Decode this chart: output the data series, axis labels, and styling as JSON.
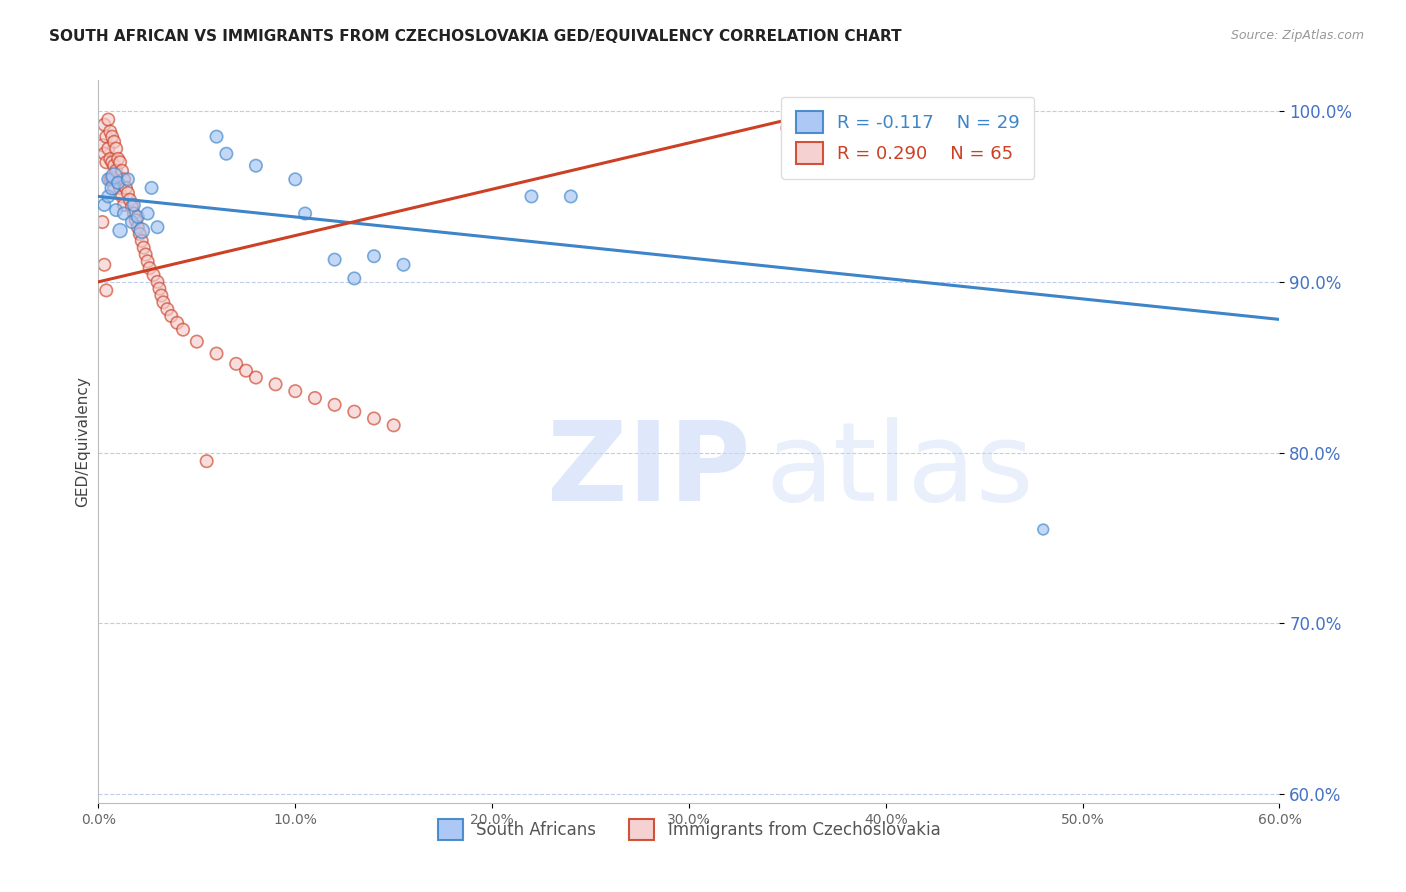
{
  "title": "SOUTH AFRICAN VS IMMIGRANTS FROM CZECHOSLOVAKIA GED/EQUIVALENCY CORRELATION CHART",
  "source": "Source: ZipAtlas.com",
  "ylabel": "GED/Equivalency",
  "xmin": 0.0,
  "xmax": 0.6,
  "ymin": 0.595,
  "ymax": 1.018,
  "yticks": [
    0.6,
    0.7,
    0.8,
    0.9,
    1.0
  ],
  "xticks": [
    0.0,
    0.1,
    0.2,
    0.3,
    0.4,
    0.5,
    0.6
  ],
  "legend_r_blue": "R = -0.117",
  "legend_n_blue": "N = 29",
  "legend_r_pink": "R = 0.290",
  "legend_n_pink": "N = 65",
  "blue_fill": "#a4c2f4",
  "blue_edge": "#3d85c8",
  "pink_fill": "#f4cccc",
  "pink_edge": "#cc4125",
  "blue_line_color": "#3d85c8",
  "pink_line_color": "#cc4125",
  "blue_line_x0": 0.0,
  "blue_line_x1": 0.6,
  "blue_line_y0": 0.95,
  "blue_line_y1": 0.878,
  "pink_line_x0": 0.0,
  "pink_line_x1": 0.38,
  "pink_line_y0": 0.9,
  "pink_line_y1": 1.003,
  "blue_x": [
    0.003,
    0.005,
    0.005,
    0.007,
    0.008,
    0.009,
    0.01,
    0.011,
    0.013,
    0.015,
    0.017,
    0.018,
    0.02,
    0.022,
    0.025,
    0.027,
    0.03,
    0.06,
    0.065,
    0.08,
    0.1,
    0.105,
    0.12,
    0.13,
    0.14,
    0.155,
    0.22,
    0.24,
    0.48
  ],
  "blue_y": [
    0.945,
    0.96,
    0.95,
    0.955,
    0.962,
    0.942,
    0.958,
    0.93,
    0.94,
    0.96,
    0.935,
    0.945,
    0.938,
    0.93,
    0.94,
    0.955,
    0.932,
    0.985,
    0.975,
    0.968,
    0.96,
    0.94,
    0.913,
    0.902,
    0.915,
    0.91,
    0.95,
    0.95,
    0.755
  ],
  "blue_sizes": [
    80,
    80,
    80,
    100,
    130,
    80,
    80,
    100,
    80,
    80,
    80,
    80,
    80,
    120,
    80,
    80,
    80,
    80,
    80,
    80,
    80,
    80,
    80,
    80,
    80,
    80,
    80,
    80,
    60
  ],
  "pink_x": [
    0.002,
    0.003,
    0.003,
    0.004,
    0.004,
    0.005,
    0.005,
    0.006,
    0.006,
    0.006,
    0.007,
    0.007,
    0.007,
    0.008,
    0.008,
    0.008,
    0.009,
    0.009,
    0.01,
    0.01,
    0.011,
    0.011,
    0.012,
    0.012,
    0.013,
    0.013,
    0.014,
    0.015,
    0.016,
    0.017,
    0.018,
    0.019,
    0.02,
    0.021,
    0.022,
    0.023,
    0.024,
    0.025,
    0.026,
    0.028,
    0.03,
    0.031,
    0.032,
    0.033,
    0.035,
    0.037,
    0.04,
    0.043,
    0.05,
    0.06,
    0.07,
    0.075,
    0.08,
    0.09,
    0.1,
    0.11,
    0.12,
    0.13,
    0.14,
    0.15,
    0.002,
    0.003,
    0.004,
    0.055,
    0.35
  ],
  "pink_y": [
    0.98,
    0.992,
    0.975,
    0.985,
    0.97,
    0.995,
    0.978,
    0.988,
    0.972,
    0.96,
    0.985,
    0.97,
    0.96,
    0.982,
    0.968,
    0.955,
    0.978,
    0.965,
    0.972,
    0.958,
    0.97,
    0.955,
    0.965,
    0.95,
    0.96,
    0.945,
    0.955,
    0.952,
    0.948,
    0.944,
    0.94,
    0.936,
    0.932,
    0.928,
    0.924,
    0.92,
    0.916,
    0.912,
    0.908,
    0.904,
    0.9,
    0.896,
    0.892,
    0.888,
    0.884,
    0.88,
    0.876,
    0.872,
    0.865,
    0.858,
    0.852,
    0.848,
    0.844,
    0.84,
    0.836,
    0.832,
    0.828,
    0.824,
    0.82,
    0.816,
    0.935,
    0.91,
    0.895,
    0.795,
    0.99
  ],
  "pink_sizes": [
    80,
    80,
    80,
    80,
    80,
    80,
    80,
    80,
    80,
    80,
    80,
    80,
    80,
    80,
    80,
    80,
    80,
    80,
    80,
    80,
    80,
    80,
    80,
    80,
    80,
    80,
    80,
    80,
    80,
    80,
    80,
    80,
    80,
    80,
    80,
    80,
    80,
    80,
    80,
    80,
    80,
    80,
    80,
    80,
    80,
    80,
    80,
    80,
    80,
    80,
    80,
    80,
    80,
    80,
    80,
    80,
    80,
    80,
    80,
    80,
    80,
    80,
    80,
    80,
    80
  ]
}
